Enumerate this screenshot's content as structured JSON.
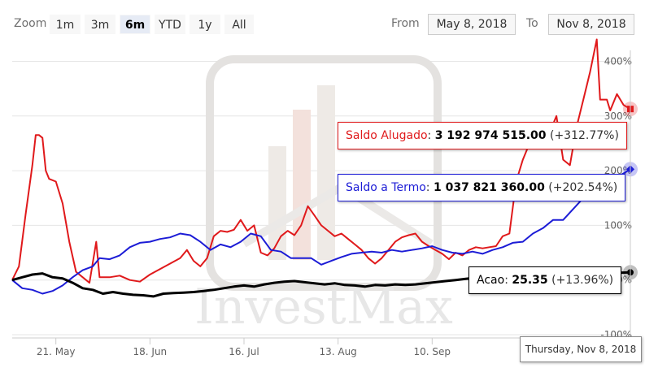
{
  "toolbar": {
    "zoom_label": "Zoom",
    "zoom_buttons": [
      "1m",
      "3m",
      "6m",
      "YTD",
      "1y",
      "All"
    ],
    "active_zoom": "6m",
    "from_label": "From",
    "from_value": "May 8, 2018",
    "to_label": "To",
    "to_value": "Nov 8, 2018"
  },
  "watermark": "InvestMax",
  "tooltips": {
    "saldo_alugado": {
      "name": "Saldo Alugado",
      "value": "3 192 974 515.00",
      "change": "(+312.77%)"
    },
    "saldo_termo": {
      "name": "Saldo a Termo",
      "value": "1 037 821 360.00",
      "change": "(+202.54%)"
    },
    "acao": {
      "name": "Acao",
      "value": "25.35",
      "change": "(+13.96%)"
    }
  },
  "x_flag": "Thursday, Nov 8, 2018",
  "colors": {
    "saldo_alugado": "#e0191b",
    "saldo_termo": "#1c1cd6",
    "acao": "#000000",
    "grid": "#e6e6e6"
  },
  "chart_data": {
    "type": "line",
    "title": "",
    "x_start": "2018-05-08",
    "x_end": "2018-11-08",
    "x_ticks": [
      {
        "date": "2018-05-21",
        "label": "21. May"
      },
      {
        "date": "2018-06-18",
        "label": "18. Jun"
      },
      {
        "date": "2018-07-16",
        "label": "16. Jul"
      },
      {
        "date": "2018-08-13",
        "label": "13. Aug"
      },
      {
        "date": "2018-09-10",
        "label": "10. Sep"
      }
    ],
    "y_ticks": [
      {
        "value": -100,
        "label": "-100%"
      },
      {
        "value": 0,
        "label": "0%"
      },
      {
        "value": 100,
        "label": "100%"
      },
      {
        "value": 200,
        "label": "200%"
      },
      {
        "value": 300,
        "label": "300%"
      },
      {
        "value": 400,
        "label": "400%"
      }
    ],
    "ylim": [
      -100,
      420
    ],
    "series": [
      {
        "name": "Saldo Alugado",
        "color": "#e0191b",
        "points": [
          [
            "2018-05-08",
            0
          ],
          [
            "2018-05-10",
            25
          ],
          [
            "2018-05-12",
            120
          ],
          [
            "2018-05-14",
            210
          ],
          [
            "2018-05-15",
            265
          ],
          [
            "2018-05-16",
            265
          ],
          [
            "2018-05-17",
            260
          ],
          [
            "2018-05-18",
            200
          ],
          [
            "2018-05-19",
            185
          ],
          [
            "2018-05-21",
            180
          ],
          [
            "2018-05-23",
            140
          ],
          [
            "2018-05-25",
            70
          ],
          [
            "2018-05-27",
            15
          ],
          [
            "2018-05-29",
            5
          ],
          [
            "2018-05-31",
            -5
          ],
          [
            "2018-06-02",
            70
          ],
          [
            "2018-06-03",
            5
          ],
          [
            "2018-06-06",
            5
          ],
          [
            "2018-06-09",
            8
          ],
          [
            "2018-06-12",
            0
          ],
          [
            "2018-06-15",
            -3
          ],
          [
            "2018-06-18",
            10
          ],
          [
            "2018-06-21",
            20
          ],
          [
            "2018-06-24",
            30
          ],
          [
            "2018-06-27",
            40
          ],
          [
            "2018-06-29",
            55
          ],
          [
            "2018-07-01",
            35
          ],
          [
            "2018-07-03",
            25
          ],
          [
            "2018-07-05",
            40
          ],
          [
            "2018-07-07",
            80
          ],
          [
            "2018-07-09",
            90
          ],
          [
            "2018-07-11",
            88
          ],
          [
            "2018-07-13",
            92
          ],
          [
            "2018-07-15",
            110
          ],
          [
            "2018-07-17",
            90
          ],
          [
            "2018-07-19",
            100
          ],
          [
            "2018-07-21",
            50
          ],
          [
            "2018-07-23",
            45
          ],
          [
            "2018-07-25",
            58
          ],
          [
            "2018-07-27",
            80
          ],
          [
            "2018-07-29",
            90
          ],
          [
            "2018-07-31",
            82
          ],
          [
            "2018-08-02",
            100
          ],
          [
            "2018-08-04",
            135
          ],
          [
            "2018-08-06",
            118
          ],
          [
            "2018-08-08",
            100
          ],
          [
            "2018-08-10",
            90
          ],
          [
            "2018-08-12",
            80
          ],
          [
            "2018-08-14",
            85
          ],
          [
            "2018-08-16",
            75
          ],
          [
            "2018-08-18",
            65
          ],
          [
            "2018-08-20",
            55
          ],
          [
            "2018-08-22",
            40
          ],
          [
            "2018-08-24",
            30
          ],
          [
            "2018-08-26",
            40
          ],
          [
            "2018-08-28",
            55
          ],
          [
            "2018-08-30",
            70
          ],
          [
            "2018-09-01",
            78
          ],
          [
            "2018-09-03",
            82
          ],
          [
            "2018-09-05",
            85
          ],
          [
            "2018-09-07",
            70
          ],
          [
            "2018-09-09",
            62
          ],
          [
            "2018-09-11",
            55
          ],
          [
            "2018-09-13",
            48
          ],
          [
            "2018-09-15",
            38
          ],
          [
            "2018-09-17",
            50
          ],
          [
            "2018-09-19",
            45
          ],
          [
            "2018-09-21",
            55
          ],
          [
            "2018-09-23",
            60
          ],
          [
            "2018-09-25",
            58
          ],
          [
            "2018-09-27",
            60
          ],
          [
            "2018-09-29",
            62
          ],
          [
            "2018-10-01",
            80
          ],
          [
            "2018-10-03",
            85
          ],
          [
            "2018-10-05",
            180
          ],
          [
            "2018-10-07",
            220
          ],
          [
            "2018-10-09",
            250
          ],
          [
            "2018-10-11",
            265
          ],
          [
            "2018-10-13",
            275
          ],
          [
            "2018-10-15",
            270
          ],
          [
            "2018-10-17",
            300
          ],
          [
            "2018-10-19",
            220
          ],
          [
            "2018-10-21",
            210
          ],
          [
            "2018-10-23",
            280
          ],
          [
            "2018-10-25",
            330
          ],
          [
            "2018-10-27",
            380
          ],
          [
            "2018-10-29",
            440
          ],
          [
            "2018-10-30",
            330
          ],
          [
            "2018-11-01",
            330
          ],
          [
            "2018-11-02",
            310
          ],
          [
            "2018-11-04",
            340
          ],
          [
            "2018-11-06",
            320
          ],
          [
            "2018-11-08",
            312.77
          ]
        ]
      },
      {
        "name": "Saldo a Termo",
        "color": "#1c1cd6",
        "points": [
          [
            "2018-05-08",
            0
          ],
          [
            "2018-05-11",
            -15
          ],
          [
            "2018-05-14",
            -18
          ],
          [
            "2018-05-17",
            -25
          ],
          [
            "2018-05-20",
            -20
          ],
          [
            "2018-05-23",
            -10
          ],
          [
            "2018-05-26",
            5
          ],
          [
            "2018-05-29",
            18
          ],
          [
            "2018-06-01",
            25
          ],
          [
            "2018-06-03",
            40
          ],
          [
            "2018-06-06",
            38
          ],
          [
            "2018-06-09",
            45
          ],
          [
            "2018-06-12",
            60
          ],
          [
            "2018-06-15",
            68
          ],
          [
            "2018-06-18",
            70
          ],
          [
            "2018-06-21",
            75
          ],
          [
            "2018-06-24",
            78
          ],
          [
            "2018-06-27",
            85
          ],
          [
            "2018-06-30",
            82
          ],
          [
            "2018-07-03",
            70
          ],
          [
            "2018-07-06",
            55
          ],
          [
            "2018-07-09",
            65
          ],
          [
            "2018-07-12",
            60
          ],
          [
            "2018-07-15",
            70
          ],
          [
            "2018-07-18",
            85
          ],
          [
            "2018-07-21",
            80
          ],
          [
            "2018-07-24",
            55
          ],
          [
            "2018-07-27",
            52
          ],
          [
            "2018-07-30",
            40
          ],
          [
            "2018-08-02",
            40
          ],
          [
            "2018-08-05",
            40
          ],
          [
            "2018-08-08",
            28
          ],
          [
            "2018-08-11",
            35
          ],
          [
            "2018-08-14",
            42
          ],
          [
            "2018-08-17",
            48
          ],
          [
            "2018-08-20",
            50
          ],
          [
            "2018-08-23",
            52
          ],
          [
            "2018-08-26",
            50
          ],
          [
            "2018-08-29",
            55
          ],
          [
            "2018-09-01",
            52
          ],
          [
            "2018-09-04",
            55
          ],
          [
            "2018-09-07",
            58
          ],
          [
            "2018-09-10",
            62
          ],
          [
            "2018-09-13",
            55
          ],
          [
            "2018-09-16",
            50
          ],
          [
            "2018-09-19",
            48
          ],
          [
            "2018-09-22",
            52
          ],
          [
            "2018-09-25",
            48
          ],
          [
            "2018-09-28",
            55
          ],
          [
            "2018-10-01",
            60
          ],
          [
            "2018-10-04",
            68
          ],
          [
            "2018-10-07",
            70
          ],
          [
            "2018-10-10",
            85
          ],
          [
            "2018-10-13",
            95
          ],
          [
            "2018-10-16",
            110
          ],
          [
            "2018-10-19",
            110
          ],
          [
            "2018-10-22",
            130
          ],
          [
            "2018-10-25",
            150
          ],
          [
            "2018-10-28",
            170
          ],
          [
            "2018-10-31",
            175
          ],
          [
            "2018-11-03",
            185
          ],
          [
            "2018-11-06",
            195
          ],
          [
            "2018-11-08",
            202.54
          ]
        ]
      },
      {
        "name": "Acao",
        "color": "#000000",
        "points": [
          [
            "2018-05-08",
            0
          ],
          [
            "2018-05-11",
            5
          ],
          [
            "2018-05-14",
            10
          ],
          [
            "2018-05-17",
            12
          ],
          [
            "2018-05-20",
            5
          ],
          [
            "2018-05-23",
            3
          ],
          [
            "2018-05-26",
            -5
          ],
          [
            "2018-05-29",
            -15
          ],
          [
            "2018-06-01",
            -18
          ],
          [
            "2018-06-04",
            -25
          ],
          [
            "2018-06-07",
            -22
          ],
          [
            "2018-06-10",
            -25
          ],
          [
            "2018-06-13",
            -27
          ],
          [
            "2018-06-16",
            -28
          ],
          [
            "2018-06-19",
            -30
          ],
          [
            "2018-06-22",
            -25
          ],
          [
            "2018-06-25",
            -24
          ],
          [
            "2018-06-28",
            -23
          ],
          [
            "2018-07-01",
            -22
          ],
          [
            "2018-07-04",
            -20
          ],
          [
            "2018-07-07",
            -18
          ],
          [
            "2018-07-10",
            -15
          ],
          [
            "2018-07-13",
            -12
          ],
          [
            "2018-07-16",
            -10
          ],
          [
            "2018-07-19",
            -12
          ],
          [
            "2018-07-22",
            -8
          ],
          [
            "2018-07-25",
            -5
          ],
          [
            "2018-07-28",
            -3
          ],
          [
            "2018-07-31",
            -2
          ],
          [
            "2018-08-03",
            -4
          ],
          [
            "2018-08-06",
            -6
          ],
          [
            "2018-08-09",
            -8
          ],
          [
            "2018-08-12",
            -6
          ],
          [
            "2018-08-15",
            -9
          ],
          [
            "2018-08-18",
            -10
          ],
          [
            "2018-08-21",
            -12
          ],
          [
            "2018-08-24",
            -9
          ],
          [
            "2018-08-27",
            -10
          ],
          [
            "2018-08-30",
            -8
          ],
          [
            "2018-09-02",
            -9
          ],
          [
            "2018-09-05",
            -8
          ],
          [
            "2018-09-08",
            -6
          ],
          [
            "2018-09-11",
            -4
          ],
          [
            "2018-09-14",
            -2
          ],
          [
            "2018-09-17",
            0
          ],
          [
            "2018-09-20",
            2
          ],
          [
            "2018-09-23",
            4
          ],
          [
            "2018-09-26",
            6
          ],
          [
            "2018-09-29",
            8
          ],
          [
            "2018-10-02",
            5
          ],
          [
            "2018-10-05",
            8
          ],
          [
            "2018-10-08",
            10
          ],
          [
            "2018-10-11",
            12
          ],
          [
            "2018-10-14",
            10
          ],
          [
            "2018-10-17",
            12
          ],
          [
            "2018-10-20",
            14
          ],
          [
            "2018-10-23",
            12
          ],
          [
            "2018-10-26",
            13
          ],
          [
            "2018-10-29",
            15
          ],
          [
            "2018-11-01",
            14
          ],
          [
            "2018-11-04",
            13
          ],
          [
            "2018-11-08",
            13.96
          ]
        ]
      }
    ]
  }
}
